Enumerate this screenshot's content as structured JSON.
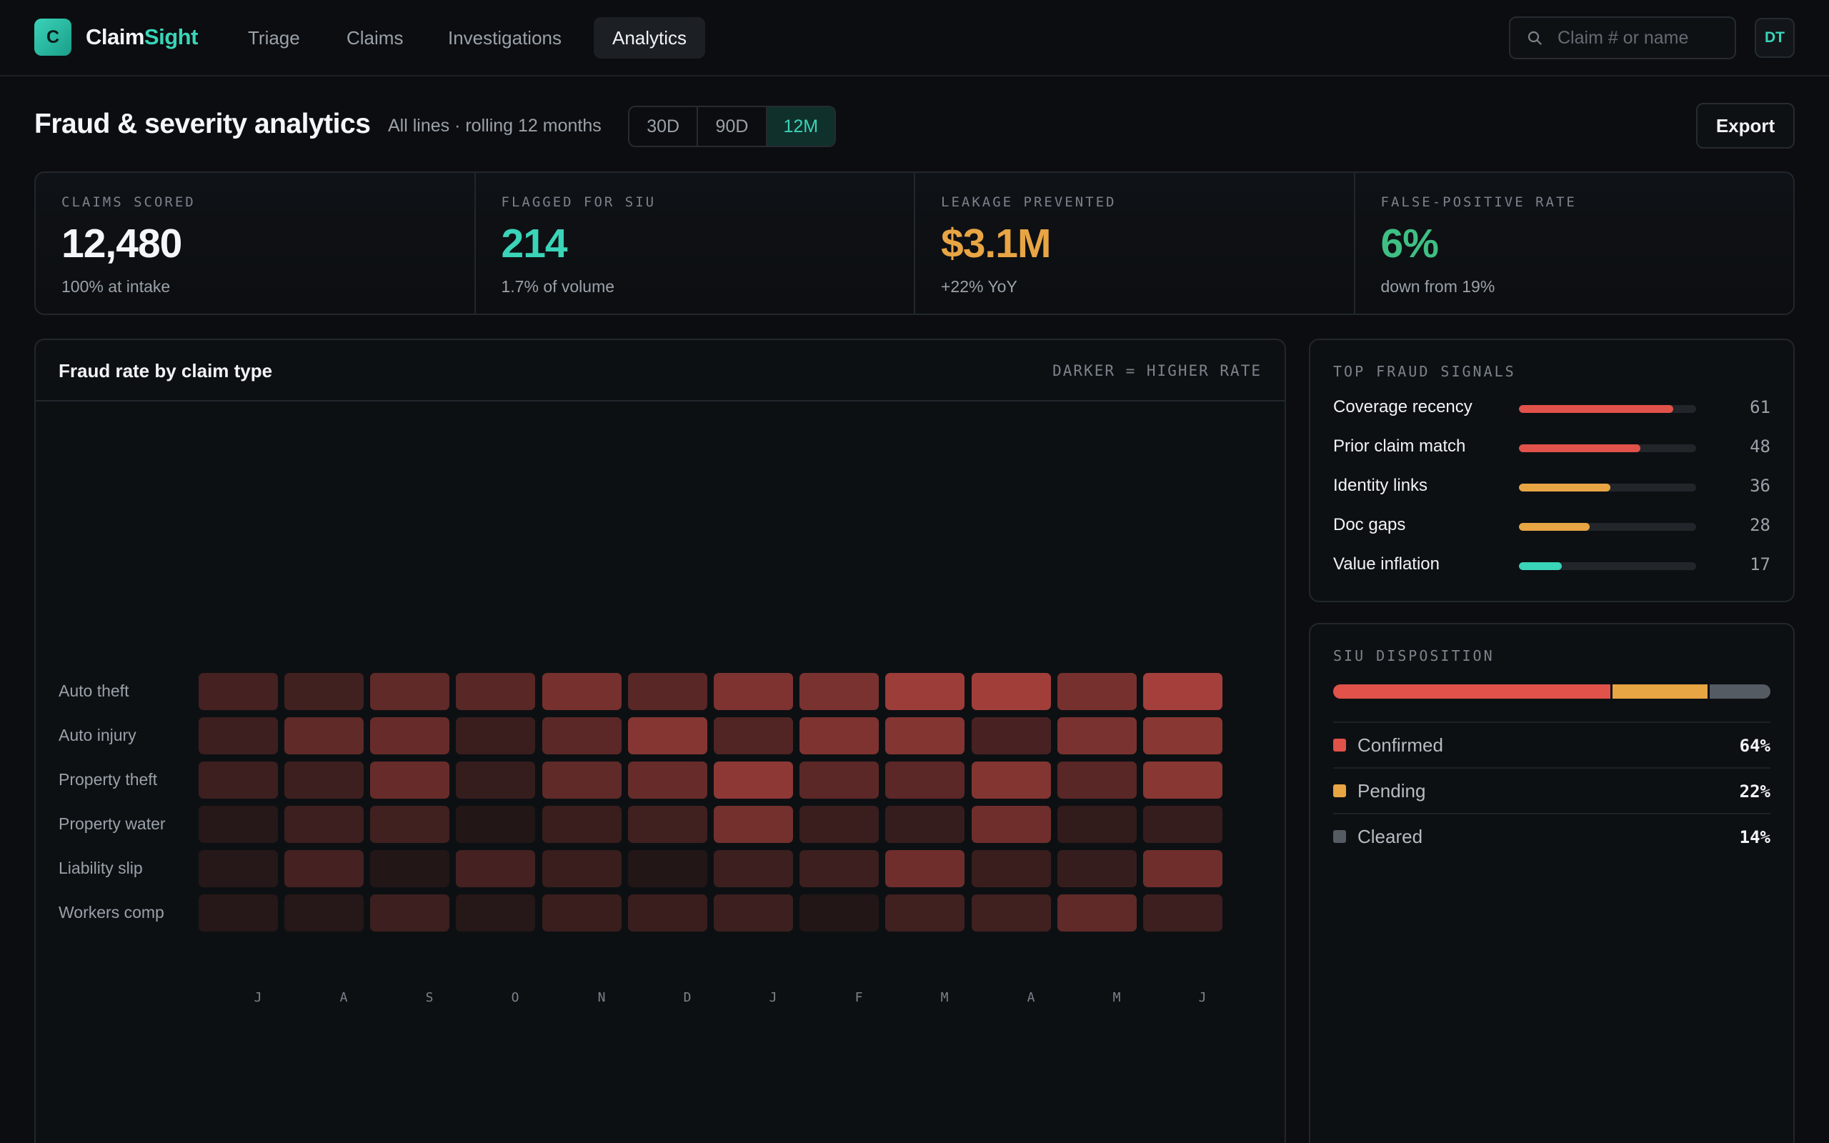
{
  "app": {
    "logo_letter": "C",
    "brand_part1": "Claim",
    "brand_part2": "Sight",
    "nav": [
      "Triage",
      "Claims",
      "Investigations",
      "Analytics"
    ],
    "active_nav": "Analytics",
    "search_placeholder": "Claim # or name",
    "user_initials": "DT",
    "accent_color": "#3ad4b8"
  },
  "page": {
    "title": "Fraud & severity analytics",
    "subtitle": "All lines · rolling 12 months",
    "ranges": [
      "30D",
      "90D",
      "12M"
    ],
    "active_range": "12M",
    "export_label": "Export"
  },
  "kpis": [
    {
      "label": "CLAIMS SCORED",
      "value": "12,480",
      "note": "100% at intake",
      "color": "#f5f6f7"
    },
    {
      "label": "FLAGGED FOR SIU",
      "value": "214",
      "note": "1.7% of volume",
      "color": "#3ad4b8"
    },
    {
      "label": "LEAKAGE PREVENTED",
      "value": "$3.1M",
      "note": "+22% YoY",
      "color": "#e8a544"
    },
    {
      "label": "FALSE-POSITIVE RATE",
      "value": "6%",
      "note": "down from 19%",
      "color": "#3fbf84"
    }
  ],
  "heatmap": {
    "title": "Fraud rate by claim type",
    "legend": "DARKER = HIGHER RATE",
    "months": [
      "J",
      "A",
      "S",
      "O",
      "N",
      "D",
      "J",
      "F",
      "M",
      "A",
      "M",
      "J"
    ],
    "rows": [
      {
        "label": "Auto theft",
        "values": [
          0.28,
          0.25,
          0.45,
          0.4,
          0.6,
          0.4,
          0.65,
          0.62,
          0.85,
          0.88,
          0.6,
          0.9
        ]
      },
      {
        "label": "Auto injury",
        "values": [
          0.22,
          0.45,
          0.5,
          0.2,
          0.42,
          0.7,
          0.35,
          0.65,
          0.68,
          0.3,
          0.62,
          0.72
        ]
      },
      {
        "label": "Property theft",
        "values": [
          0.22,
          0.22,
          0.5,
          0.18,
          0.45,
          0.5,
          0.75,
          0.42,
          0.42,
          0.68,
          0.4,
          0.72
        ]
      },
      {
        "label": "Property water",
        "values": [
          0.08,
          0.22,
          0.25,
          0.05,
          0.2,
          0.25,
          0.58,
          0.2,
          0.18,
          0.55,
          0.15,
          0.18
        ]
      },
      {
        "label": "Liability slip",
        "values": [
          0.08,
          0.28,
          0.05,
          0.28,
          0.2,
          0.05,
          0.22,
          0.22,
          0.55,
          0.2,
          0.18,
          0.55
        ]
      },
      {
        "label": "Workers comp",
        "values": [
          0.08,
          0.08,
          0.22,
          0.08,
          0.2,
          0.2,
          0.22,
          0.05,
          0.25,
          0.25,
          0.45,
          0.22
        ]
      }
    ],
    "low_color": "#1a1415",
    "high_color": "#b4443f"
  },
  "signals": {
    "title": "TOP FRAUD SIGNALS",
    "items": [
      {
        "name": "Coverage recency",
        "value": 61,
        "color": "#e0524a"
      },
      {
        "name": "Prior claim match",
        "value": 48,
        "color": "#e0524a"
      },
      {
        "name": "Identity links",
        "value": 36,
        "color": "#e8a544"
      },
      {
        "name": "Doc gaps",
        "value": 28,
        "color": "#e8a544"
      },
      {
        "name": "Value inflation",
        "value": 17,
        "color": "#3ad4b8"
      }
    ],
    "max": 70
  },
  "disposition": {
    "title": "SIU DISPOSITION",
    "items": [
      {
        "name": "Confirmed",
        "pct": "64%",
        "share": 64,
        "color": "#e0524a"
      },
      {
        "name": "Pending",
        "pct": "22%",
        "share": 22,
        "color": "#e8a544"
      },
      {
        "name": "Cleared",
        "pct": "14%",
        "share": 14,
        "color": "#555b62"
      }
    ]
  }
}
